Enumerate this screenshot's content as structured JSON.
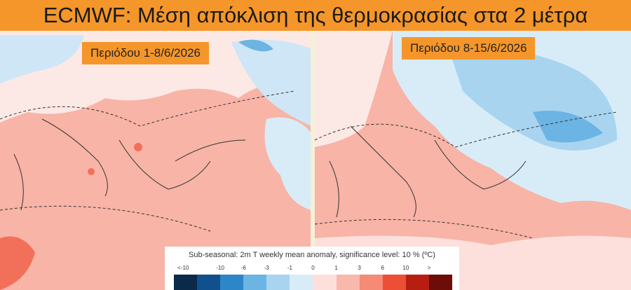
{
  "header": {
    "title": "ECMWF: Μέση απόκλιση της θερμοκρασίας στα 2 μέτρα"
  },
  "panels": [
    {
      "label": "Περιόδου 1-8/6/2026"
    },
    {
      "label": "Περιόδου 8-15/6/2026"
    }
  ],
  "legend": {
    "title": "Sub-seasonal: 2m T weekly mean anomaly, significance level: 10 % (ºC)",
    "ticks": [
      "<-10",
      "-10",
      "-6",
      "-3",
      "-1",
      "0",
      "1",
      "3",
      "6",
      "10",
      ">"
    ],
    "colors": [
      "#0b2a4a",
      "#10508c",
      "#2c86c8",
      "#6cb4e4",
      "#a9d4f0",
      "#d8ecf8",
      "#fde0dc",
      "#f9b8ac",
      "#f58a76",
      "#ec4f35",
      "#b81d12",
      "#6e0c08"
    ]
  }
}
